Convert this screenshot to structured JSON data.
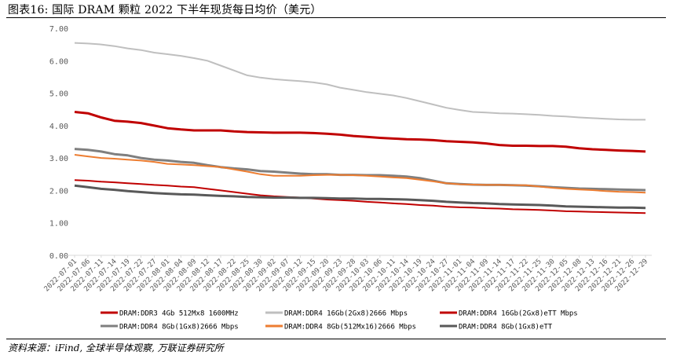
{
  "header": {
    "title": "图表16:  国际 DRAM 颗粒 2022 下半年现货每日均价（美元）"
  },
  "footer": {
    "source": "资料来源：iFind, 全球半导体观察, 万联证券研究所"
  },
  "chart_data": {
    "type": "line",
    "title": "",
    "xlabel": "",
    "ylabel": "",
    "ylim": [
      0,
      7
    ],
    "y_ticks": [
      "0.00",
      "1.00",
      "2.00",
      "3.00",
      "4.00",
      "5.00",
      "6.00",
      "7.00"
    ],
    "grid": false,
    "legend_position": "bottom",
    "x": [
      "2022-07-01",
      "2022-07-06",
      "2022-07-11",
      "2022-07-14",
      "2022-07-19",
      "2022-07-22",
      "2022-07-27",
      "2022-08-01",
      "2022-08-04",
      "2022-08-09",
      "2022-08-12",
      "2022-08-17",
      "2022-08-22",
      "2022-08-25",
      "2022-08-30",
      "2022-09-02",
      "2022-09-07",
      "2022-09-12",
      "2022-09-15",
      "2022-09-20",
      "2022-09-23",
      "2022-09-28",
      "2022-10-03",
      "2022-10-06",
      "2022-10-11",
      "2022-10-14",
      "2022-10-19",
      "2022-10-24",
      "2022-10-27",
      "2022-11-01",
      "2022-11-04",
      "2022-11-09",
      "2022-11-14",
      "2022-11-17",
      "2022-11-22",
      "2022-11-25",
      "2022-11-30",
      "2022-12-05",
      "2022-12-08",
      "2022-12-13",
      "2022-12-16",
      "2022-12-21",
      "2022-12-26",
      "2022-12-29"
    ],
    "series": [
      {
        "name": "DRAM:DDR3 4Gb 512Mx8 1600MHz",
        "color": "#c00000",
        "width": 2,
        "values": [
          2.32,
          2.3,
          2.27,
          2.25,
          2.22,
          2.2,
          2.17,
          2.15,
          2.12,
          2.1,
          2.05,
          2.0,
          1.95,
          1.9,
          1.85,
          1.82,
          1.8,
          1.78,
          1.75,
          1.72,
          1.7,
          1.68,
          1.65,
          1.63,
          1.6,
          1.58,
          1.55,
          1.53,
          1.5,
          1.48,
          1.47,
          1.45,
          1.44,
          1.42,
          1.41,
          1.4,
          1.38,
          1.36,
          1.35,
          1.34,
          1.33,
          1.32,
          1.31,
          1.3
        ]
      },
      {
        "name": "DRAM:DDR4 16Gb(2Gx8)2666 Mbps",
        "color": "#bfbfbf",
        "width": 2,
        "values": [
          6.55,
          6.53,
          6.5,
          6.45,
          6.38,
          6.33,
          6.25,
          6.2,
          6.15,
          6.08,
          6.0,
          5.85,
          5.7,
          5.55,
          5.48,
          5.43,
          5.4,
          5.37,
          5.33,
          5.27,
          5.17,
          5.1,
          5.03,
          4.98,
          4.93,
          4.85,
          4.75,
          4.65,
          4.55,
          4.48,
          4.42,
          4.4,
          4.38,
          4.37,
          4.35,
          4.33,
          4.3,
          4.28,
          4.25,
          4.23,
          4.21,
          4.19,
          4.18,
          4.18
        ]
      },
      {
        "name": "DRAM:DDR4 16Gb(2Gx8)eTT Mbps",
        "color": "#c00000",
        "width": 3,
        "values": [
          4.42,
          4.38,
          4.25,
          4.15,
          4.12,
          4.08,
          4.0,
          3.92,
          3.88,
          3.85,
          3.85,
          3.85,
          3.82,
          3.8,
          3.79,
          3.78,
          3.78,
          3.78,
          3.77,
          3.75,
          3.72,
          3.68,
          3.65,
          3.62,
          3.6,
          3.58,
          3.57,
          3.55,
          3.52,
          3.5,
          3.48,
          3.45,
          3.4,
          3.38,
          3.38,
          3.37,
          3.37,
          3.35,
          3.3,
          3.27,
          3.25,
          3.23,
          3.22,
          3.2
        ]
      },
      {
        "name": "DRAM:DDR4 8Gb(1Gx8)2666 Mbps",
        "color": "#7f7f7f",
        "width": 3,
        "values": [
          3.28,
          3.25,
          3.2,
          3.12,
          3.08,
          3.0,
          2.95,
          2.92,
          2.88,
          2.85,
          2.78,
          2.72,
          2.68,
          2.65,
          2.6,
          2.58,
          2.55,
          2.52,
          2.5,
          2.5,
          2.48,
          2.48,
          2.47,
          2.47,
          2.45,
          2.43,
          2.38,
          2.3,
          2.22,
          2.2,
          2.18,
          2.17,
          2.17,
          2.16,
          2.15,
          2.13,
          2.1,
          2.08,
          2.06,
          2.05,
          2.04,
          2.03,
          2.02,
          2.01
        ]
      },
      {
        "name": "DRAM:DDR4 8Gb(512Mx16)2666 Mbps",
        "color": "#ed7d31",
        "width": 2,
        "values": [
          3.1,
          3.05,
          3.0,
          2.98,
          2.95,
          2.92,
          2.88,
          2.82,
          2.8,
          2.78,
          2.75,
          2.72,
          2.65,
          2.58,
          2.5,
          2.45,
          2.45,
          2.45,
          2.47,
          2.48,
          2.48,
          2.47,
          2.45,
          2.43,
          2.4,
          2.38,
          2.33,
          2.28,
          2.22,
          2.19,
          2.18,
          2.17,
          2.17,
          2.16,
          2.16,
          2.12,
          2.08,
          2.05,
          2.03,
          2.01,
          1.98,
          1.96,
          1.95,
          1.93
        ]
      },
      {
        "name": "DRAM:DDR4 8Gb(1Gx8)eTT",
        "color": "#595959",
        "width": 3,
        "values": [
          2.15,
          2.1,
          2.05,
          2.02,
          1.98,
          1.95,
          1.92,
          1.9,
          1.88,
          1.87,
          1.85,
          1.83,
          1.82,
          1.8,
          1.79,
          1.78,
          1.78,
          1.77,
          1.77,
          1.76,
          1.75,
          1.75,
          1.74,
          1.74,
          1.73,
          1.72,
          1.7,
          1.68,
          1.65,
          1.63,
          1.61,
          1.6,
          1.58,
          1.57,
          1.56,
          1.55,
          1.53,
          1.51,
          1.5,
          1.49,
          1.48,
          1.47,
          1.47,
          1.46
        ]
      }
    ]
  }
}
